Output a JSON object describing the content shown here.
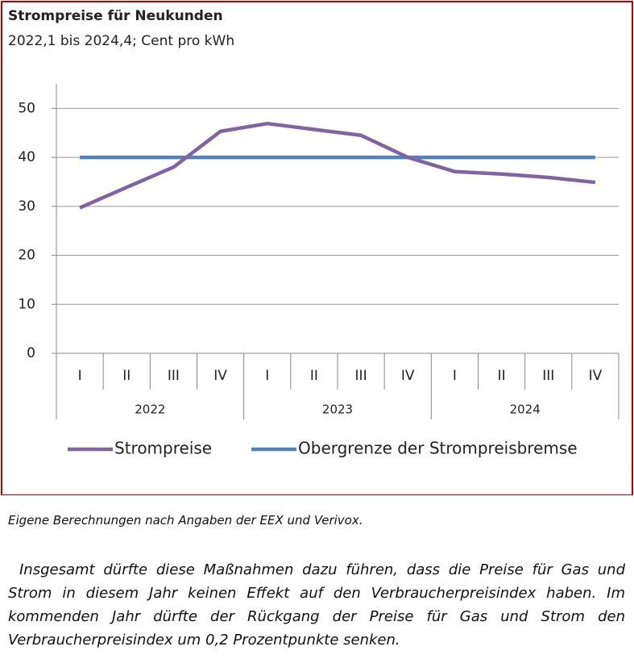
{
  "chart_data": {
    "type": "line",
    "title": "Strompreise für Neukunden",
    "subtitle": "2022,1 bis 2024,4; Cent pro kWh",
    "categories": [
      "I",
      "II",
      "III",
      "IV",
      "I",
      "II",
      "III",
      "IV",
      "I",
      "II",
      "III",
      "IV"
    ],
    "years": [
      "2022",
      "2023",
      "2024"
    ],
    "series": [
      {
        "name": "Strompreise",
        "color": "#8064a2",
        "values": [
          29.7,
          33.9,
          38,
          45.3,
          46.9,
          45.7,
          44.5,
          40,
          37.1,
          36.6,
          35.9,
          34.9
        ]
      },
      {
        "name": "Obergrenze der Strompreisbremse",
        "color": "#4f81bd",
        "values": [
          40,
          40,
          40,
          40,
          40,
          40,
          40,
          40,
          40,
          40,
          40,
          40
        ]
      }
    ],
    "ylim": [
      0,
      55
    ],
    "yticks": [
      0,
      10,
      20,
      30,
      40,
      50
    ],
    "grid": true,
    "legend": "bottom"
  },
  "source": "Eigene Berechnungen nach Angaben der EEX und Verivox.",
  "body": "Insgesamt dürfte diese Maßnahmen dazu führen, dass die Preise für Gas und Strom in diesem Jahr keinen Effekt auf den Verbraucherpreisindex haben. Im kommenden Jahr dürfte der Rückgang der Preise für Gas und Strom den Verbraucherpreisindex um 0,2 Prozentpunkte senken."
}
